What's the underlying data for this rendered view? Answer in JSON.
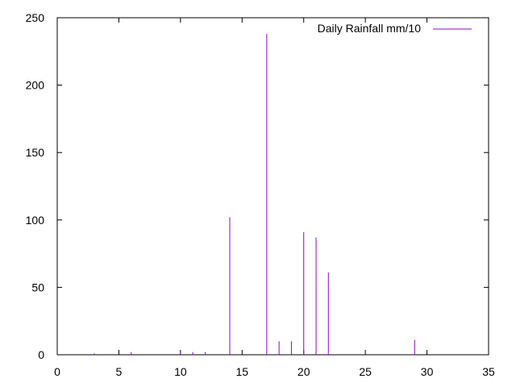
{
  "chart_data": {
    "type": "bar",
    "series": [
      {
        "name": "Daily Rainfall mm/10",
        "color": "#9400d3",
        "x": [
          1,
          2,
          3,
          4,
          5,
          6,
          7,
          8,
          9,
          10,
          11,
          12,
          13,
          14,
          15,
          16,
          17,
          18,
          19,
          20,
          21,
          22,
          23,
          24,
          25,
          26,
          27,
          28,
          29,
          30,
          31
        ],
        "values": [
          0,
          0,
          1,
          0,
          0,
          2,
          0,
          0,
          0,
          2,
          2,
          2,
          0,
          102,
          0,
          0,
          238,
          10,
          10,
          91,
          87,
          61,
          0,
          0,
          0,
          0,
          0,
          0,
          11,
          0,
          0
        ]
      }
    ],
    "xlim": [
      0,
      35
    ],
    "ylim": [
      0,
      250
    ],
    "xticks": [
      "0",
      "5",
      "10",
      "15",
      "20",
      "25",
      "30",
      "35"
    ],
    "yticks": [
      "0",
      "50",
      "100",
      "150",
      "200",
      "250"
    ],
    "xlabel": "",
    "ylabel": "",
    "title": "",
    "legend_position": "top-right",
    "grid": false
  }
}
